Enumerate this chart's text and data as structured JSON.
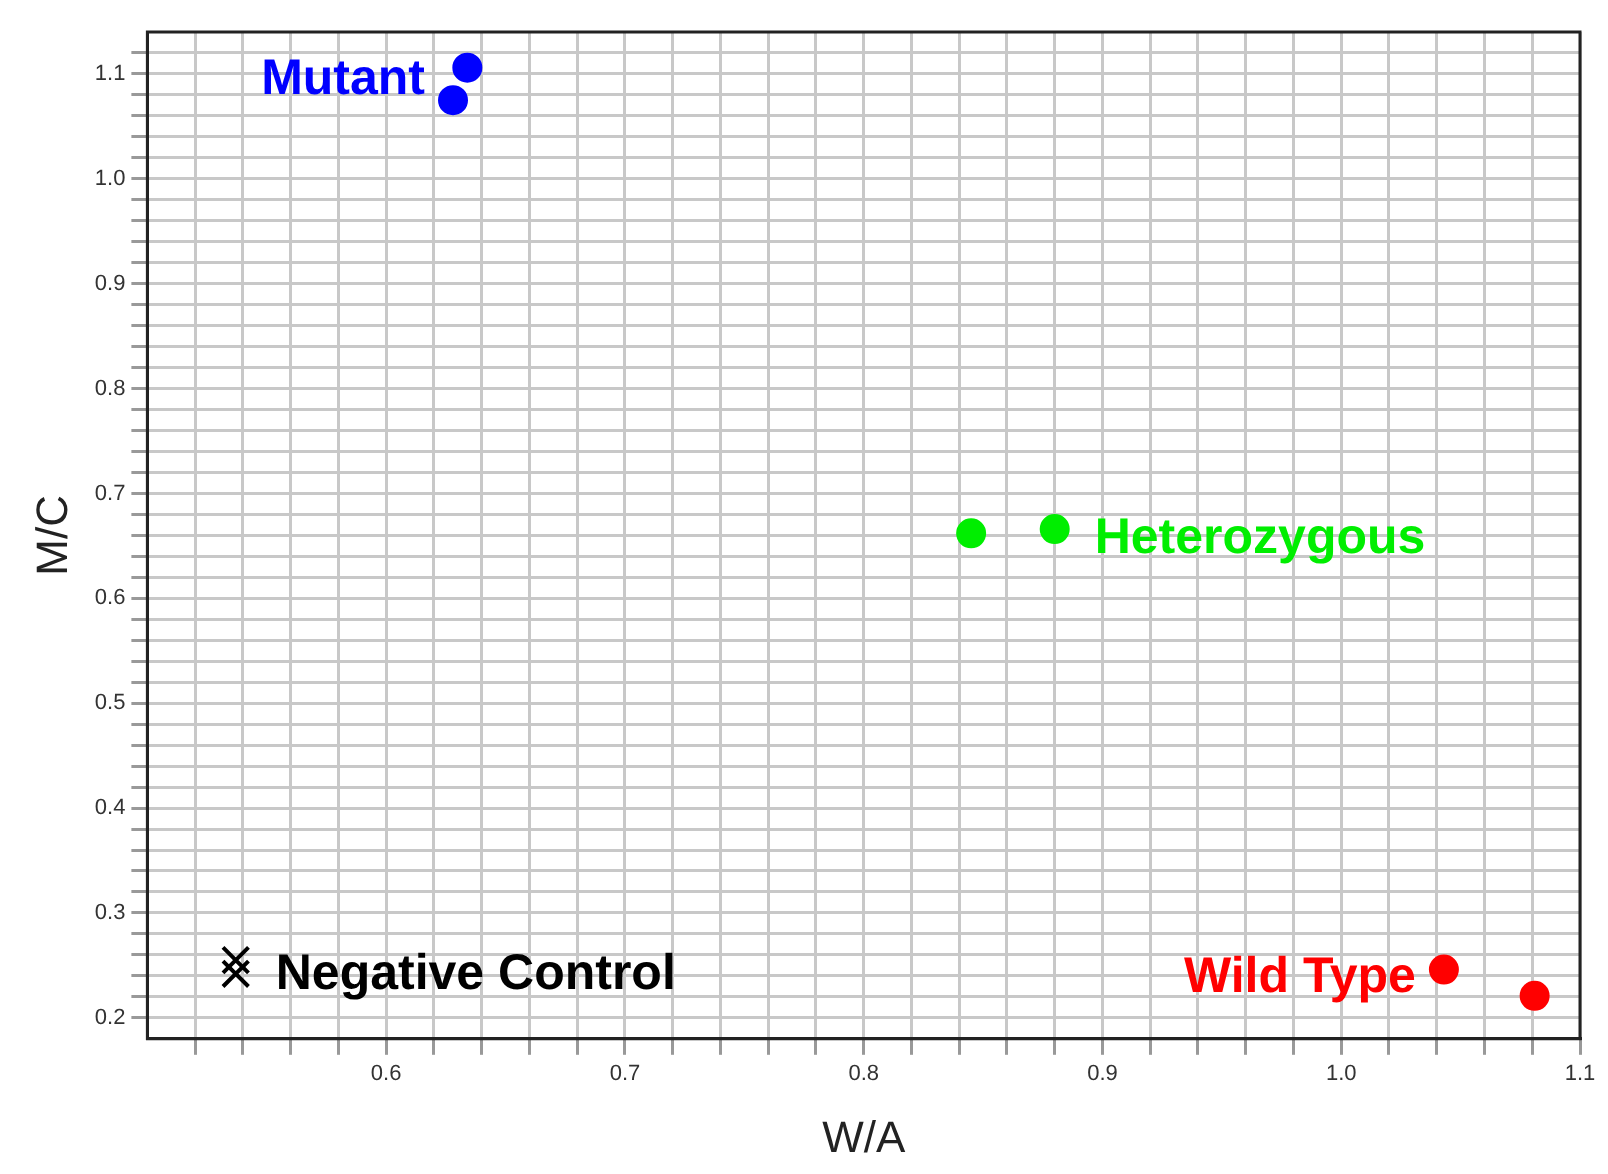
{
  "chart_data": {
    "type": "scatter",
    "xlabel": "W/A",
    "ylabel": "M/C",
    "xlim": [
      0.5,
      1.1
    ],
    "ylim": [
      0.18,
      1.14
    ],
    "xticks": [
      {
        "value": 0.52,
        "label": null
      },
      {
        "value": 0.54,
        "label": null
      },
      {
        "value": 0.56,
        "label": null
      },
      {
        "value": 0.58,
        "label": null
      },
      0.6,
      {
        "value": 0.62,
        "label": null
      },
      {
        "value": 0.64,
        "label": null
      },
      {
        "value": 0.66,
        "label": null
      },
      {
        "value": 0.68,
        "label": null
      },
      0.7,
      {
        "value": 0.72,
        "label": null
      },
      {
        "value": 0.74,
        "label": null
      },
      {
        "value": 0.76,
        "label": null
      },
      {
        "value": 0.78,
        "label": null
      },
      0.8,
      {
        "value": 0.82,
        "label": null
      },
      {
        "value": 0.84,
        "label": null
      },
      {
        "value": 0.86,
        "label": null
      },
      {
        "value": 0.88,
        "label": null
      },
      0.9,
      {
        "value": 0.92,
        "label": null
      },
      {
        "value": 0.94,
        "label": null
      },
      {
        "value": 0.96,
        "label": null
      },
      {
        "value": 0.98,
        "label": null
      },
      {
        "value": 1,
        "label": "1.0"
      },
      {
        "value": 1.02,
        "label": null
      },
      {
        "value": 1.04,
        "label": null
      },
      {
        "value": 1.06,
        "label": null
      },
      {
        "value": 1.08,
        "label": null
      },
      1.1
    ],
    "yticks": [
      0.2,
      {
        "value": 0.22,
        "label": null
      },
      {
        "value": 0.24,
        "label": null
      },
      {
        "value": 0.26,
        "label": null
      },
      {
        "value": 0.28,
        "label": null
      },
      0.3,
      {
        "value": 0.32,
        "label": null
      },
      {
        "value": 0.34,
        "label": null
      },
      {
        "value": 0.36,
        "label": null
      },
      {
        "value": 0.38,
        "label": null
      },
      0.4,
      {
        "value": 0.42,
        "label": null
      },
      {
        "value": 0.44,
        "label": null
      },
      {
        "value": 0.46,
        "label": null
      },
      {
        "value": 0.48,
        "label": null
      },
      0.5,
      {
        "value": 0.52,
        "label": null
      },
      {
        "value": 0.54,
        "label": null
      },
      {
        "value": 0.56,
        "label": null
      },
      {
        "value": 0.58,
        "label": null
      },
      0.6,
      {
        "value": 0.62,
        "label": null
      },
      {
        "value": 0.64,
        "label": null
      },
      {
        "value": 0.66,
        "label": null
      },
      {
        "value": 0.68,
        "label": null
      },
      0.7,
      {
        "value": 0.72,
        "label": null
      },
      {
        "value": 0.74,
        "label": null
      },
      {
        "value": 0.76,
        "label": null
      },
      {
        "value": 0.78,
        "label": null
      },
      0.8,
      {
        "value": 0.82,
        "label": null
      },
      {
        "value": 0.84,
        "label": null
      },
      {
        "value": 0.86,
        "label": null
      },
      {
        "value": 0.88,
        "label": null
      },
      0.9,
      {
        "value": 0.92,
        "label": null
      },
      {
        "value": 0.94,
        "label": null
      },
      {
        "value": 0.96,
        "label": null
      },
      {
        "value": 0.98,
        "label": null
      },
      {
        "value": 1,
        "label": "1.0"
      },
      {
        "value": 1.02,
        "label": null
      },
      {
        "value": 1.04,
        "label": null
      },
      {
        "value": 1.06,
        "label": null
      },
      {
        "value": 1.08,
        "label": null
      },
      1.1,
      {
        "value": 1.12,
        "label": null
      }
    ],
    "grid": true,
    "legend": false,
    "series": [
      {
        "name": "Mutant",
        "color": "#0000ff",
        "marker": "circle",
        "x": [
          0.634,
          0.628
        ],
        "values": [
          1.106,
          1.075
        ]
      },
      {
        "name": "Heterozygous",
        "color": "#00ee00",
        "marker": "circle",
        "x": [
          0.845,
          0.88
        ],
        "values": [
          0.662,
          0.666
        ]
      },
      {
        "name": "Wild Type",
        "color": "#ff0000",
        "marker": "circle",
        "x": [
          1.043,
          1.081
        ],
        "values": [
          0.246,
          0.221
        ]
      },
      {
        "name": "Negative Control",
        "color": "#000000",
        "marker": "cross",
        "x": [
          0.537,
          0.537
        ],
        "values": [
          0.255,
          0.242
        ]
      }
    ]
  }
}
